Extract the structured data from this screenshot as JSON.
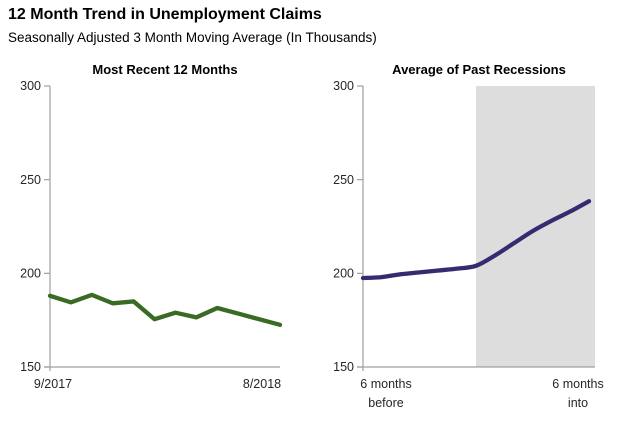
{
  "header": {
    "title": "12 Month Trend in Unemployment Claims",
    "subtitle": "Seasonally Adjusted 3 Month Moving Average (In Thousands)"
  },
  "chart_data": [
    {
      "type": "line",
      "title": "Most Recent 12 Months",
      "values": [
        188,
        184.5,
        188.5,
        184,
        185,
        175.5,
        179,
        176.5,
        181.5,
        178.5,
        175.5,
        172.5
      ],
      "ylim": [
        150,
        300
      ],
      "yticks": [
        150,
        200,
        250,
        300
      ],
      "x_axis_labels": [
        "9/2017",
        "8/2018"
      ],
      "line_color": "#3A6B25",
      "grid": false,
      "legend": "none"
    },
    {
      "type": "line",
      "title": "Average of Past Recessions",
      "values": [
        197.5,
        198,
        199.5,
        200.5,
        201.5,
        202.5,
        204,
        209.5,
        216,
        222.5,
        228,
        233,
        238.5
      ],
      "ylim": [
        150,
        300
      ],
      "yticks": [
        150,
        200,
        250,
        300
      ],
      "x_axis_labels": [
        "6 months\nbefore",
        "6 months\ninto"
      ],
      "line_color": "#372A70",
      "shaded_region": {
        "from_index": 6,
        "to": "axis-end",
        "color": "#DDDDDD"
      },
      "grid": false,
      "legend": "none"
    }
  ]
}
